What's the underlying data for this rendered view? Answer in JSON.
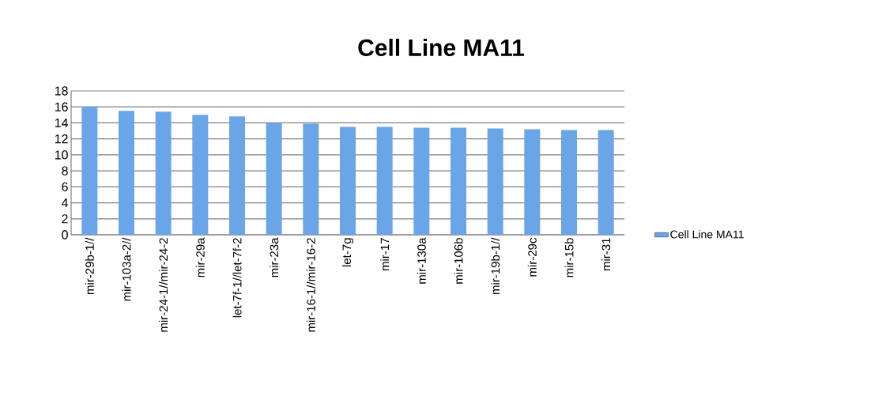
{
  "chart_data": {
    "type": "bar",
    "title": "Cell Line  MA11",
    "categories": [
      "mir-29b-1//",
      "mir-103a-2//",
      "mir-24-1//mir-24-2",
      "mir-29a",
      "let-7f-1//let-7f-2",
      "mir-23a",
      "mir-16-1//mir-16-2",
      "let-7g",
      "mir-17",
      "mir-130a",
      "mir-106b",
      "mir-19b-1//",
      "mir-29c",
      "mir-15b",
      "mir-31"
    ],
    "series": [
      {
        "name": "Cell Line  MA11",
        "color": "#6aa5e8",
        "values": [
          16.0,
          15.5,
          15.4,
          15.0,
          14.8,
          14.0,
          13.9,
          13.5,
          13.5,
          13.4,
          13.4,
          13.3,
          13.2,
          13.1,
          13.1
        ]
      }
    ],
    "ylim": [
      0,
      18
    ],
    "yticks": [
      0,
      2,
      4,
      6,
      8,
      10,
      12,
      14,
      16,
      18
    ],
    "grid": "y",
    "legend": "right"
  }
}
